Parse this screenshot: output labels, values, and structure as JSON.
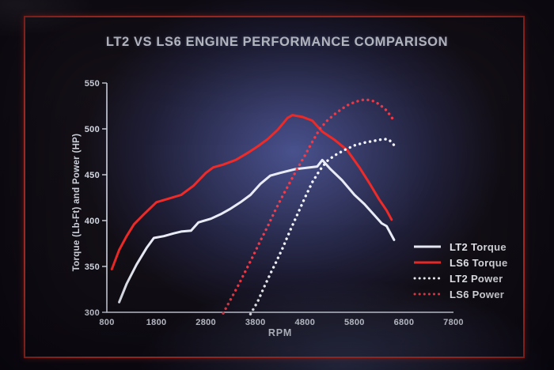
{
  "title": "LT2 VS LS6 ENGINE PERFORMANCE COMPARISON",
  "frame_color": "#e23b2e",
  "chart_data": {
    "type": "line",
    "title": "LT2 VS LS6 ENGINE PERFORMANCE COMPARISON",
    "xlabel": "RPM",
    "ylabel": "Torque (Lb-Ft) and Power (HP)",
    "xlim": [
      800,
      7800
    ],
    "ylim": [
      300,
      550
    ],
    "xticks": [
      800,
      1800,
      2800,
      3800,
      4800,
      5800,
      6800,
      7800
    ],
    "yticks": [
      300,
      350,
      400,
      450,
      500,
      550
    ],
    "grid": false,
    "legend_position": "right",
    "axis_color": "#d6dbe8",
    "series": [
      {
        "name": "LT2 Torque",
        "color": "#e9ecf6",
        "style": "solid",
        "points": [
          [
            1050,
            311
          ],
          [
            1200,
            331
          ],
          [
            1400,
            352
          ],
          [
            1600,
            370
          ],
          [
            1750,
            381
          ],
          [
            1950,
            383
          ],
          [
            2150,
            386
          ],
          [
            2300,
            388
          ],
          [
            2500,
            389
          ],
          [
            2650,
            398
          ],
          [
            2900,
            402
          ],
          [
            3100,
            407
          ],
          [
            3300,
            413
          ],
          [
            3500,
            420
          ],
          [
            3700,
            428
          ],
          [
            3900,
            440
          ],
          [
            4100,
            449
          ],
          [
            4300,
            452
          ],
          [
            4600,
            456
          ],
          [
            4900,
            458
          ],
          [
            5050,
            459
          ],
          [
            5150,
            466
          ],
          [
            5300,
            457
          ],
          [
            5550,
            444
          ],
          [
            5800,
            428
          ],
          [
            6000,
            418
          ],
          [
            6200,
            406
          ],
          [
            6350,
            397
          ],
          [
            6450,
            394
          ],
          [
            6600,
            379
          ]
        ]
      },
      {
        "name": "LS6 Torque",
        "color": "#ee2b28",
        "style": "solid",
        "points": [
          [
            900,
            347
          ],
          [
            1050,
            368
          ],
          [
            1200,
            383
          ],
          [
            1350,
            396
          ],
          [
            1550,
            407
          ],
          [
            1800,
            420
          ],
          [
            2050,
            424
          ],
          [
            2300,
            428
          ],
          [
            2550,
            438
          ],
          [
            2800,
            452
          ],
          [
            2950,
            458
          ],
          [
            3150,
            461
          ],
          [
            3400,
            466
          ],
          [
            3650,
            474
          ],
          [
            3850,
            481
          ],
          [
            4050,
            489
          ],
          [
            4250,
            499
          ],
          [
            4450,
            512
          ],
          [
            4550,
            515
          ],
          [
            4750,
            513
          ],
          [
            4950,
            509
          ],
          [
            5150,
            497
          ],
          [
            5400,
            488
          ],
          [
            5650,
            477
          ],
          [
            5900,
            458
          ],
          [
            6100,
            441
          ],
          [
            6300,
            423
          ],
          [
            6450,
            411
          ],
          [
            6550,
            401
          ]
        ]
      },
      {
        "name": "LT2 Power",
        "color": "#f3f5fb",
        "style": "dotted",
        "points": [
          [
            3700,
            298
          ],
          [
            3850,
            312
          ],
          [
            3980,
            328
          ],
          [
            4120,
            344
          ],
          [
            4220,
            355
          ],
          [
            4350,
            370
          ],
          [
            4500,
            389
          ],
          [
            4650,
            407
          ],
          [
            4800,
            425
          ],
          [
            4950,
            442
          ],
          [
            5100,
            455
          ],
          [
            5250,
            465
          ],
          [
            5400,
            471
          ],
          [
            5600,
            477
          ],
          [
            5800,
            482
          ],
          [
            6000,
            485
          ],
          [
            6200,
            487
          ],
          [
            6400,
            489
          ],
          [
            6500,
            488
          ],
          [
            6620,
            481
          ]
        ]
      },
      {
        "name": "LS6 Power",
        "color": "#f23a48",
        "style": "dotted",
        "points": [
          [
            3150,
            299
          ],
          [
            3300,
            314
          ],
          [
            3450,
            329
          ],
          [
            3600,
            345
          ],
          [
            3750,
            361
          ],
          [
            3900,
            378
          ],
          [
            4050,
            394
          ],
          [
            4200,
            411
          ],
          [
            4350,
            427
          ],
          [
            4500,
            442
          ],
          [
            4650,
            457
          ],
          [
            4800,
            471
          ],
          [
            4950,
            486
          ],
          [
            5100,
            500
          ],
          [
            5250,
            509
          ],
          [
            5400,
            516
          ],
          [
            5550,
            522
          ],
          [
            5700,
            527
          ],
          [
            5850,
            530
          ],
          [
            6000,
            532
          ],
          [
            6150,
            531
          ],
          [
            6300,
            527
          ],
          [
            6450,
            520
          ],
          [
            6600,
            509
          ]
        ]
      }
    ]
  }
}
